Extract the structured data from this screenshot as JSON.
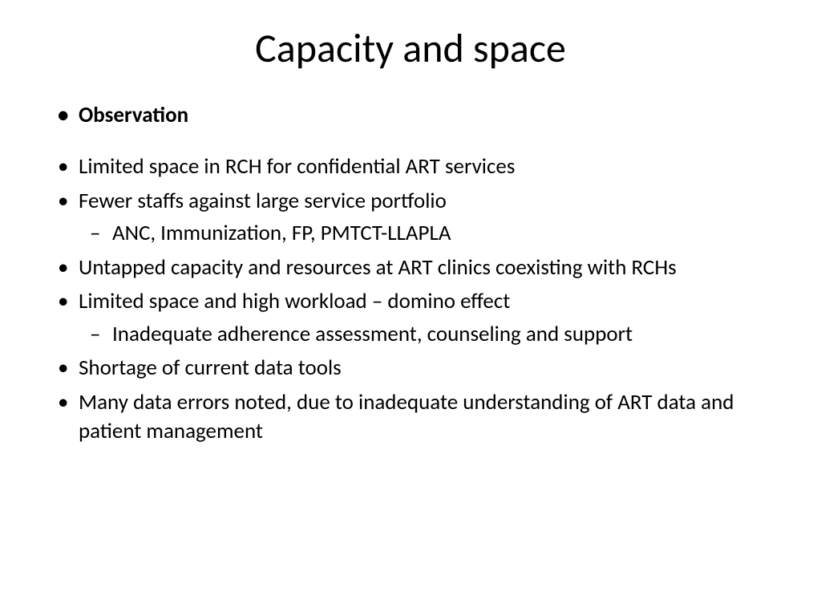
{
  "title": "Capacity and space",
  "observation_label": "Observation",
  "items": [
    {
      "text": "Limited space in RCH for confidential ART services"
    },
    {
      "text": "Fewer staffs against large service portfolio",
      "sub": [
        "ANC, Immunization, FP, PMTCT-LLAPLA"
      ]
    },
    {
      "text": "Untapped capacity and resources at ART clinics coexisting with RCHs"
    },
    {
      "text": "Limited space and high workload – domino effect",
      "sub": [
        "Inadequate adherence assessment, counseling and support"
      ]
    },
    {
      "text": "Shortage of current data tools"
    },
    {
      "text": "Many data errors noted, due to inadequate understanding of ART data and patient management"
    }
  ],
  "style": {
    "background_color": "#ffffff",
    "text_color": "#000000",
    "title_fontsize": 50,
    "body_fontsize": 27,
    "font_family": "Calibri"
  }
}
